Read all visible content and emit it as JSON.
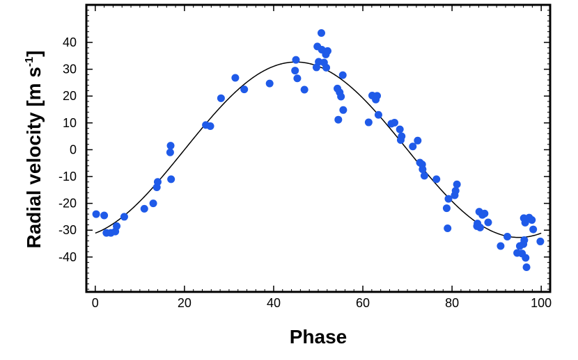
{
  "chart_data": {
    "type": "scatter",
    "title": "",
    "xlabel": "Phase",
    "ylabel": "Radial velocity [m s",
    "ylabel_sup": "-1",
    "ylabel_end": "]",
    "xlim": [
      -2,
      102
    ],
    "ylim": [
      -53,
      54
    ],
    "x_ticks": [
      0,
      20,
      40,
      60,
      80,
      100
    ],
    "y_ticks": [
      -40,
      -30,
      -20,
      -10,
      0,
      10,
      20,
      30,
      40
    ],
    "grid": false,
    "legend": false,
    "colors": {
      "points": "#1f5ae8",
      "fit": "#000000",
      "axes": "#000000"
    },
    "series": [
      {
        "kind": "points",
        "points": [
          [
            0.2,
            -24
          ],
          [
            2.0,
            -24.5
          ],
          [
            2.5,
            -31
          ],
          [
            3.5,
            -31
          ],
          [
            4.5,
            -30.5
          ],
          [
            4.8,
            -28.5
          ],
          [
            6.5,
            -25
          ],
          [
            11,
            -22
          ],
          [
            13,
            -20
          ],
          [
            13.8,
            -14
          ],
          [
            14,
            -12
          ],
          [
            16.8,
            -1
          ],
          [
            16.9,
            1.5
          ],
          [
            17,
            -11
          ],
          [
            24.8,
            9.2
          ],
          [
            25.8,
            8.8
          ],
          [
            28.2,
            19.2
          ],
          [
            31.4,
            26.8
          ],
          [
            33.4,
            22.5
          ],
          [
            39.1,
            24.7
          ],
          [
            44.8,
            29.5
          ],
          [
            45,
            33.5
          ],
          [
            45.3,
            26.6
          ],
          [
            46.9,
            22.4
          ],
          [
            49.6,
            30.7
          ],
          [
            49.8,
            38.5
          ],
          [
            50.1,
            32.8
          ],
          [
            50.7,
            43.5
          ],
          [
            50.8,
            37.3
          ],
          [
            51.3,
            32.5
          ],
          [
            51.7,
            35.5
          ],
          [
            51.8,
            30.6
          ],
          [
            52.1,
            36.8
          ],
          [
            54.3,
            22.8
          ],
          [
            54.5,
            11.2
          ],
          [
            54.8,
            21.4
          ],
          [
            55.1,
            19.8
          ],
          [
            55.5,
            27.8
          ],
          [
            55.6,
            14.8
          ],
          [
            61.3,
            10.2
          ],
          [
            62.1,
            20.2
          ],
          [
            62.9,
            18.7
          ],
          [
            63.2,
            20.1
          ],
          [
            63.5,
            13
          ],
          [
            66.4,
            9.7
          ],
          [
            67.1,
            10.1
          ],
          [
            68.3,
            7.6
          ],
          [
            68.5,
            3.6
          ],
          [
            68.7,
            5
          ],
          [
            71.2,
            1.2
          ],
          [
            72.3,
            3.4
          ],
          [
            72.8,
            -4.8
          ],
          [
            73.3,
            -5.5
          ],
          [
            73.4,
            -7.3
          ],
          [
            73.8,
            -9.7
          ],
          [
            76.5,
            -11
          ],
          [
            78.8,
            -21.8
          ],
          [
            79,
            -29.3
          ],
          [
            79.2,
            -18.3
          ],
          [
            80.6,
            -17
          ],
          [
            80.8,
            -15.3
          ],
          [
            81.1,
            -12.9
          ],
          [
            85.6,
            -28.5
          ],
          [
            85.7,
            -27.5
          ],
          [
            86.1,
            -23.1
          ],
          [
            86.3,
            -29
          ],
          [
            86.8,
            -24.3
          ],
          [
            87.3,
            -23.8
          ],
          [
            88.1,
            -27.1
          ],
          [
            90.9,
            -35.9
          ],
          [
            92.4,
            -32.4
          ],
          [
            94.6,
            -38.5
          ],
          [
            95.2,
            -35.9
          ],
          [
            95.7,
            -38.7
          ],
          [
            96,
            -35.2
          ],
          [
            96.1,
            -25.5
          ],
          [
            96.2,
            -33.7
          ],
          [
            96.4,
            -27.2
          ],
          [
            96.5,
            -40.3
          ],
          [
            96.7,
            -43.8
          ],
          [
            97.3,
            -25.3
          ],
          [
            97.9,
            -26.2
          ],
          [
            98.2,
            -29.7
          ],
          [
            99.8,
            -34.2
          ]
        ]
      },
      {
        "kind": "fit",
        "model": "sinusoid",
        "mean": 0,
        "amplitude": 32.7,
        "peak_phase": 45,
        "period": 100,
        "x_range": [
          0,
          100
        ]
      }
    ]
  }
}
